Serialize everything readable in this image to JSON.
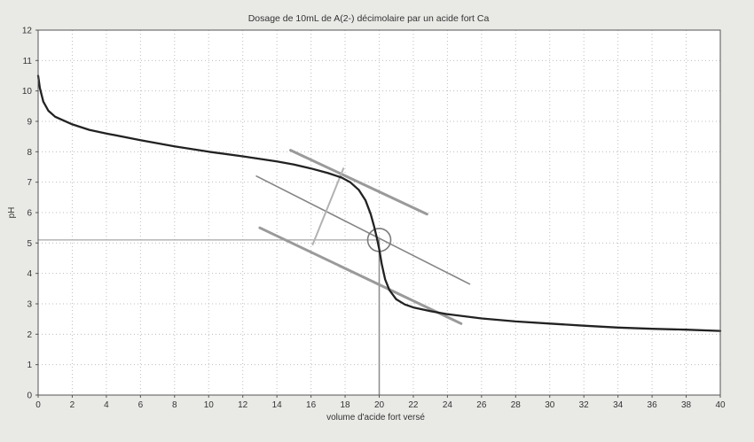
{
  "chart_data": {
    "type": "line",
    "title": "Dosage de 10mL de A(2-) décimolaire par un acide fort Ca",
    "xlabel": "volume d'acide fort versé",
    "ylabel": "pH",
    "xlim": [
      0,
      40
    ],
    "ylim": [
      0,
      12
    ],
    "x_ticks": [
      0,
      2,
      4,
      6,
      8,
      10,
      12,
      14,
      16,
      18,
      20,
      22,
      24,
      26,
      28,
      30,
      32,
      34,
      36,
      38,
      40
    ],
    "y_ticks": [
      0,
      1,
      2,
      3,
      4,
      5,
      6,
      7,
      8,
      9,
      10,
      11,
      12
    ],
    "grid": true,
    "colors": {
      "curve": "#222222",
      "construction": "#8a8a8a",
      "grid": "#bdbdbd",
      "background": "#ffffff",
      "page": "#e9e9e6"
    },
    "series": [
      {
        "x": [
          0,
          0.1,
          0.3,
          0.6,
          1,
          2,
          3,
          4,
          6,
          8,
          10,
          12,
          14,
          15,
          16,
          17,
          17.8,
          18.3,
          18.8,
          19.2,
          19.5,
          19.7,
          19.85,
          20,
          20.15,
          20.35,
          20.6,
          21,
          21.5,
          22,
          23,
          24,
          26,
          28,
          30,
          32,
          34,
          36,
          38,
          40
        ],
        "y": [
          10.5,
          10.1,
          9.65,
          9.35,
          9.15,
          8.9,
          8.72,
          8.6,
          8.38,
          8.18,
          8.0,
          7.85,
          7.68,
          7.58,
          7.45,
          7.3,
          7.15,
          7.0,
          6.75,
          6.4,
          5.95,
          5.55,
          5.2,
          4.8,
          4.3,
          3.8,
          3.45,
          3.15,
          2.98,
          2.88,
          2.76,
          2.66,
          2.52,
          2.42,
          2.35,
          2.28,
          2.22,
          2.18,
          2.15,
          2.11
        ]
      }
    ],
    "construction": {
      "tangent_upper": {
        "x": [
          14.8,
          22.8
        ],
        "y": [
          8.05,
          5.95
        ]
      },
      "tangent_lower": {
        "x": [
          13,
          24.8
        ],
        "y": [
          5.5,
          2.35
        ]
      },
      "median": {
        "x": [
          12.8,
          25.3
        ],
        "y": [
          7.2,
          3.65
        ]
      },
      "connector": {
        "x": [
          16.1,
          17.9
        ],
        "y": [
          4.95,
          7.45
        ]
      },
      "equivalence_point": {
        "x": 20,
        "y": 5.1
      },
      "equivalence_vertical": {
        "x": [
          20,
          20
        ],
        "y": [
          0,
          5.1
        ]
      },
      "equivalence_horizontal": {
        "x": [
          0,
          20
        ],
        "y": [
          5.1,
          5.1
        ]
      }
    }
  }
}
